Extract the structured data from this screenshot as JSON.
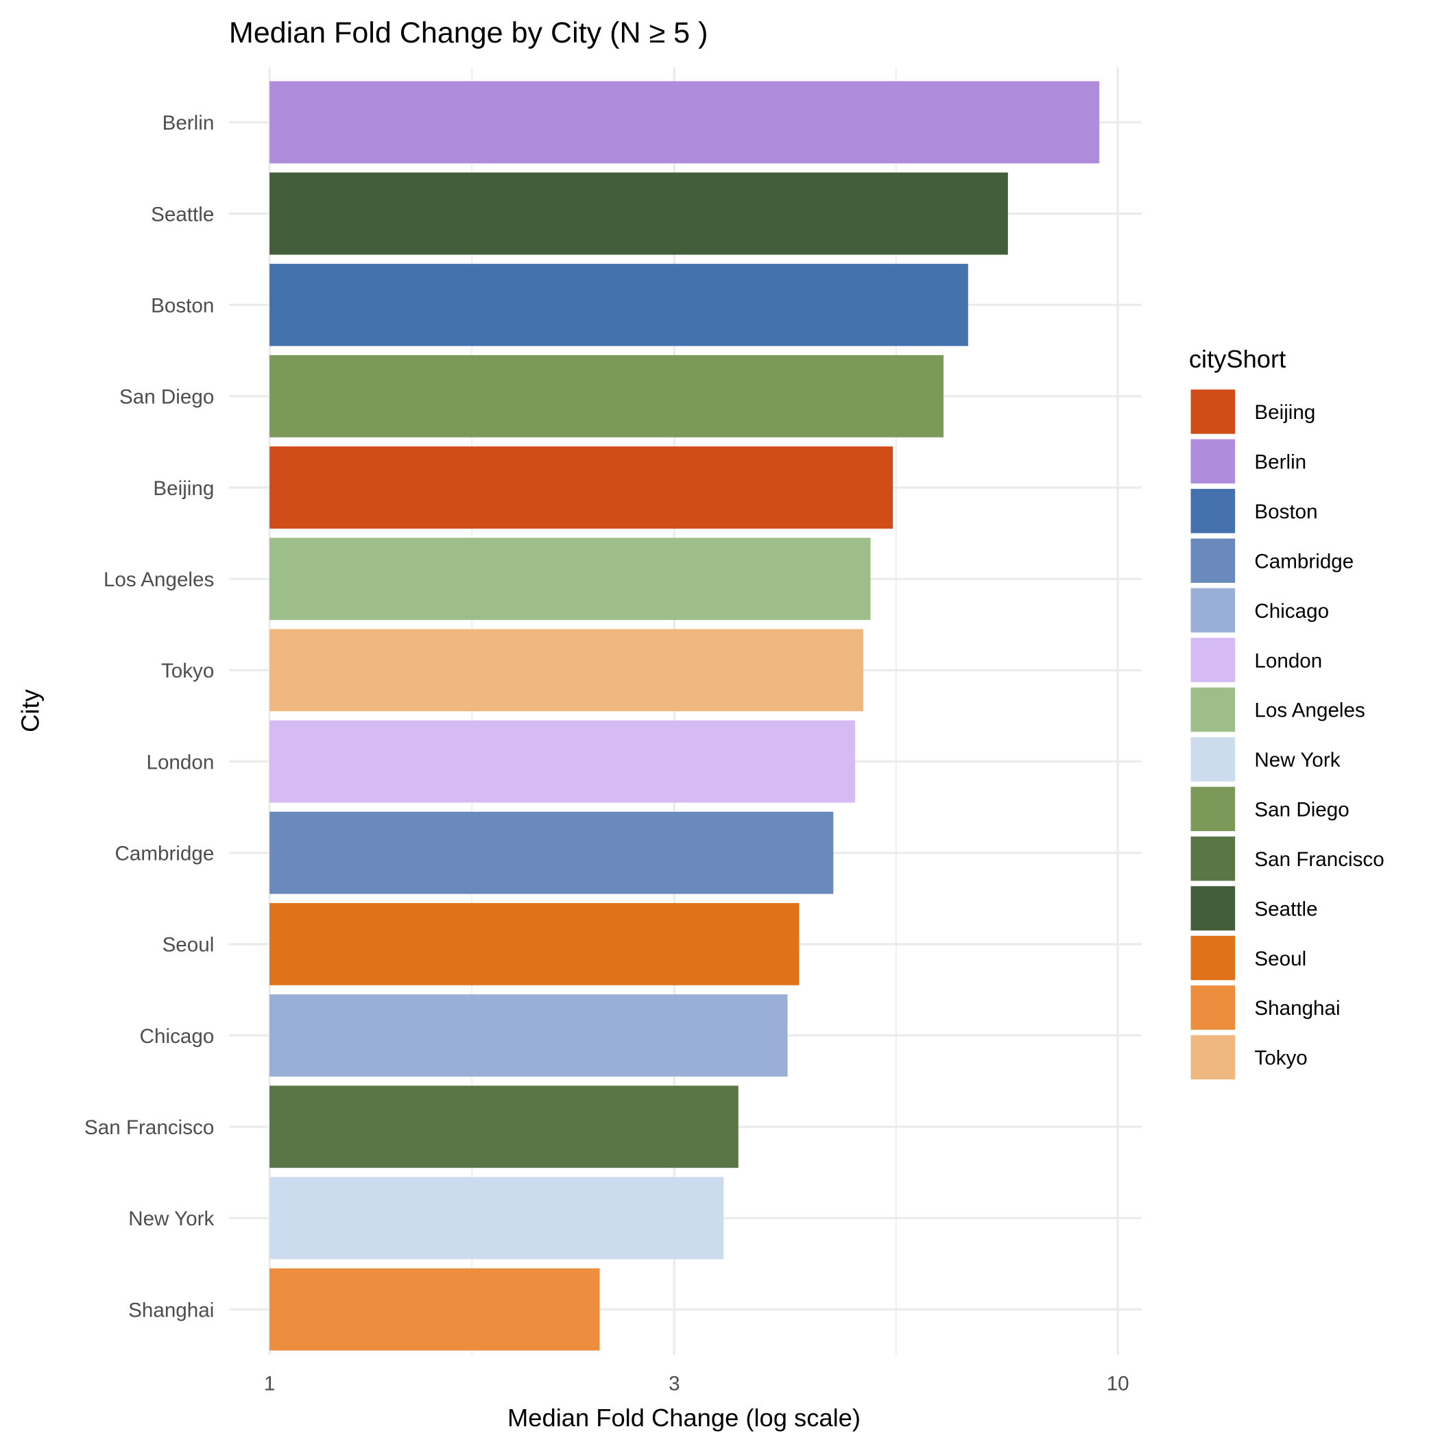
{
  "chart_data": {
    "type": "bar",
    "orientation": "horizontal",
    "title": "Median Fold Change by City (N ≥ 5 )",
    "xlabel": "Median Fold Change (log scale)",
    "ylabel": "City",
    "xscale": "log10",
    "xlim": [
      1,
      10
    ],
    "xticks": [
      1,
      3,
      10
    ],
    "xtick_labels": [
      "1",
      "3",
      "10"
    ],
    "grid": true,
    "categories": [
      "Berlin",
      "Seattle",
      "Boston",
      "San Diego",
      "Beijing",
      "Los Angeles",
      "Tokyo",
      "London",
      "Cambridge",
      "Seoul",
      "Chicago",
      "San Francisco",
      "New York",
      "Shanghai"
    ],
    "values": [
      9.51,
      7.42,
      6.66,
      6.23,
      5.43,
      5.11,
      5.01,
      4.9,
      4.62,
      4.21,
      4.08,
      3.57,
      3.43,
      2.45
    ],
    "legend": {
      "title": "cityShort",
      "placement": "right",
      "entries": [
        "Beijing",
        "Berlin",
        "Boston",
        "Cambridge",
        "Chicago",
        "London",
        "Los Angeles",
        "New York",
        "San Diego",
        "San Francisco",
        "Seattle",
        "Seoul",
        "Shanghai",
        "Tokyo"
      ]
    },
    "colors": {
      "Beijing": "#d04c19",
      "Berlin": "#af8cdc",
      "Boston": "#4571ad",
      "Cambridge": "#6a89bd",
      "Chicago": "#9aafd7",
      "London": "#d5baf3",
      "Los Angeles": "#9dbd89",
      "New York": "#ccdbed",
      "San Diego": "#7b9a5a",
      "San Francisco": "#5a7647",
      "Seattle": "#425e3b",
      "Seoul": "#e0731a",
      "Shanghai": "#ed8e3f",
      "Tokyo": "#efb881"
    }
  }
}
